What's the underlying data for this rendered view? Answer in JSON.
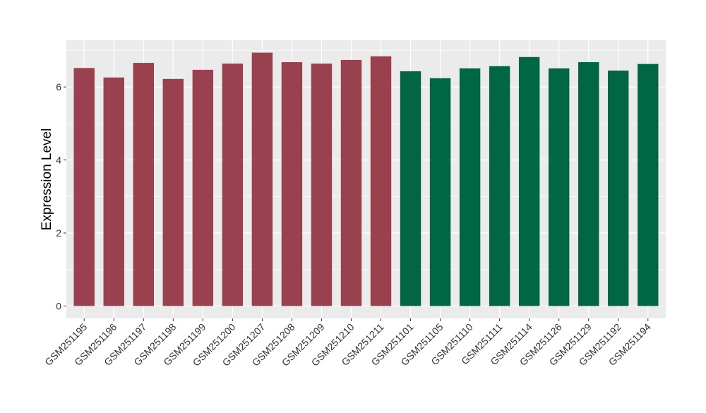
{
  "chart_data": {
    "type": "bar",
    "title": "",
    "xlabel": "",
    "ylabel": "Expression Level",
    "ylim": [
      -0.34,
      7.28
    ],
    "yticks": [
      0,
      2,
      4,
      6
    ],
    "grid": true,
    "legend": "none",
    "categories": [
      "GSM251195",
      "GSM251196",
      "GSM251197",
      "GSM251198",
      "GSM251199",
      "GSM251200",
      "GSM251207",
      "GSM251208",
      "GSM251209",
      "GSM251210",
      "GSM251211",
      "GSM251101",
      "GSM251105",
      "GSM251110",
      "GSM251111",
      "GSM251114",
      "GSM251126",
      "GSM251129",
      "GSM251192",
      "GSM251194"
    ],
    "values": [
      6.52,
      6.26,
      6.66,
      6.22,
      6.47,
      6.64,
      6.94,
      6.68,
      6.64,
      6.74,
      6.84,
      6.43,
      6.24,
      6.51,
      6.57,
      6.82,
      6.51,
      6.68,
      6.45,
      6.63
    ],
    "groups": [
      0,
      0,
      0,
      0,
      0,
      0,
      0,
      0,
      0,
      0,
      0,
      1,
      1,
      1,
      1,
      1,
      1,
      1,
      1,
      1
    ],
    "colors": [
      "#9A4150",
      "#006644"
    ],
    "panel_background": "#EBEBEB"
  }
}
